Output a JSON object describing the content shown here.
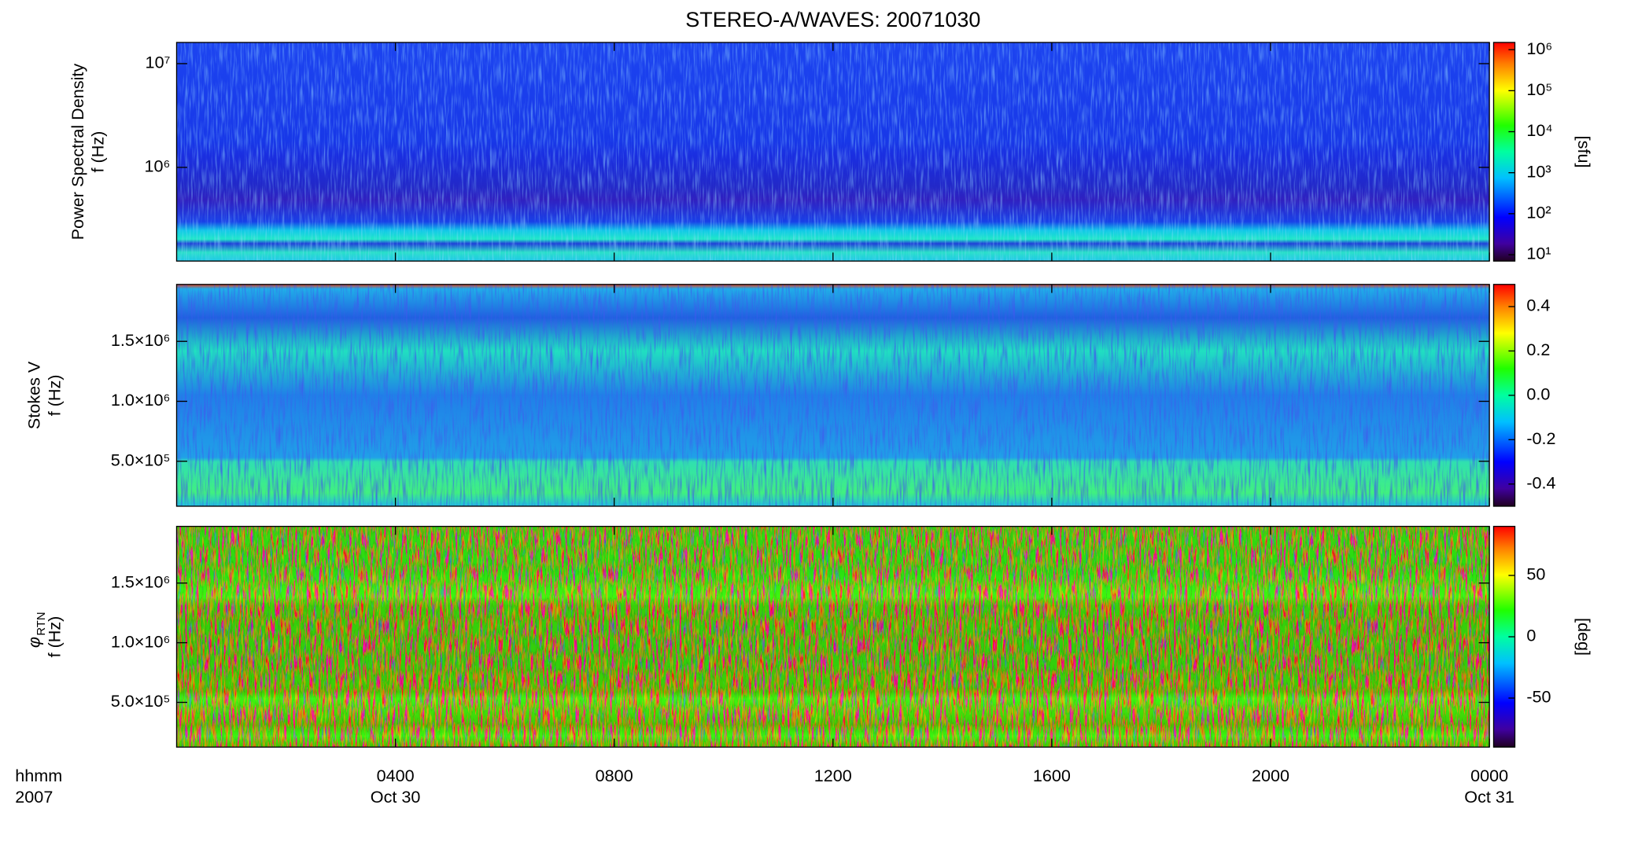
{
  "title": "STEREO-A/WAVES: 20071030",
  "chart_data": [
    {
      "type": "spectrogram",
      "ylabel": [
        "Power Spectral Density",
        "f (Hz)"
      ],
      "ylog": true,
      "ylim": [
        125000,
        16000000
      ],
      "yticks": [
        {
          "value": 1000000,
          "label": "10⁶"
        },
        {
          "value": 10000000,
          "label": "10⁷"
        }
      ],
      "colorbar": {
        "log": true,
        "lim": [
          7,
          1500000
        ],
        "label": "[sfu]",
        "ticks": [
          {
            "value": 10,
            "label": "10¹"
          },
          {
            "value": 100,
            "label": "10²"
          },
          {
            "value": 1000,
            "label": "10³"
          },
          {
            "value": 10000,
            "label": "10⁴"
          },
          {
            "value": 100000,
            "label": "10⁵"
          },
          {
            "value": 1000000,
            "label": "10⁶"
          }
        ]
      }
    },
    {
      "type": "spectrogram",
      "ylabel": [
        "Stokes V",
        "f (Hz)"
      ],
      "ylog": false,
      "ylim": [
        125000,
        1975000
      ],
      "yticks": [
        {
          "value": 500000,
          "label": "5.0×10⁵"
        },
        {
          "value": 1000000,
          "label": "1.0×10⁶"
        },
        {
          "value": 1500000,
          "label": "1.5×10⁶"
        }
      ],
      "colorbar": {
        "log": false,
        "lim": [
          -0.5,
          0.5
        ],
        "ticks": [
          -0.4,
          -0.2,
          {
            "value": 0,
            "label": "0.0"
          },
          0.2,
          0.4
        ]
      }
    },
    {
      "type": "spectrogram",
      "ylabel_symbol": "φ",
      "ylabel_subscript": "RTN",
      "ylabel": [
        "f (Hz)"
      ],
      "ylog": false,
      "ylim": [
        125000,
        1975000
      ],
      "yticks": [
        {
          "value": 500000,
          "label": "5.0×10⁵"
        },
        {
          "value": 1000000,
          "label": "1.0×10⁶"
        },
        {
          "value": 1500000,
          "label": "1.5×10⁶"
        }
      ],
      "colorbar": {
        "log": false,
        "lim": [
          -90,
          90
        ],
        "label": "[deg]",
        "ticks": [
          -50,
          0,
          50
        ]
      },
      "x_label": [
        "hhmm",
        "2007"
      ],
      "xlim": [
        0,
        24
      ],
      "xticks": [
        {
          "value": 4,
          "label": "0400"
        },
        {
          "value": 8,
          "label": "0800"
        },
        {
          "value": 12,
          "label": "1200"
        },
        {
          "value": 16,
          "label": "1600"
        },
        {
          "value": 20,
          "label": "2000"
        },
        {
          "value": 24,
          "label": "0000"
        }
      ],
      "date_labels": [
        {
          "value": 4,
          "label": "Oct 30"
        },
        {
          "value": 24,
          "label": "Oct 31"
        }
      ]
    }
  ]
}
